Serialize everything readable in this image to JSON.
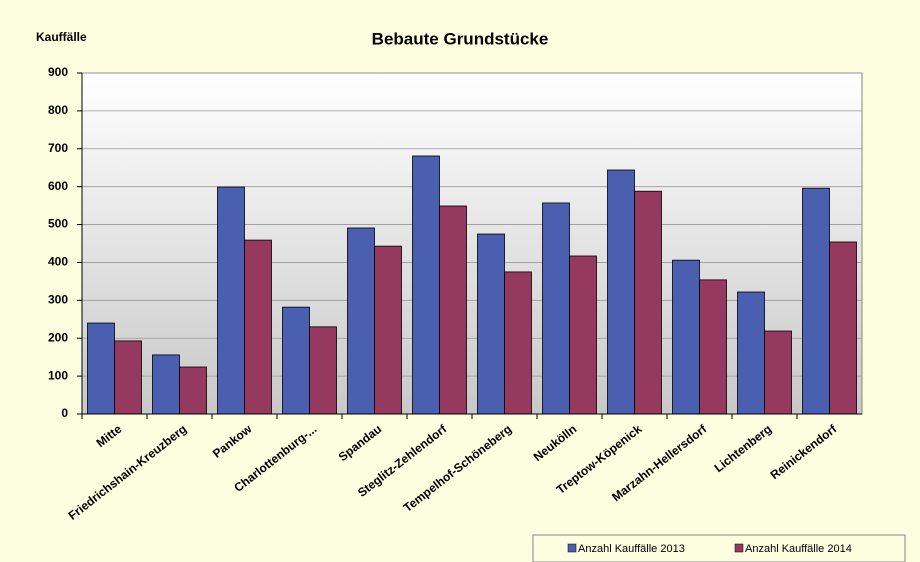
{
  "chart_data": {
    "type": "bar",
    "title": "Bebaute Grundstücke",
    "y_label": "Kauffälle",
    "categories": [
      "Mitte",
      "Friedrichshain-Kreuzberg",
      "Pankow",
      "Charlottenburg-...",
      "Spandau",
      "Steglitz-Zehlendorf",
      "Tempelhof-Schöneberg",
      "Neukölln",
      "Treptow-Köpenick",
      "Marzahn-Hellersdorf",
      "Lichtenberg",
      "Reinickendorf"
    ],
    "series": [
      {
        "name": "Anzahl Kauffälle 2013",
        "color": "#4a5fb0",
        "values": [
          240,
          156,
          599,
          282,
          491,
          681,
          475,
          557,
          644,
          406,
          322,
          596
        ]
      },
      {
        "name": "Anzahl Kauffälle 2014",
        "color": "#953a5e",
        "values": [
          193,
          124,
          459,
          230,
          443,
          549,
          375,
          417,
          588,
          354,
          219,
          454
        ]
      }
    ],
    "ylim": [
      0,
      900
    ],
    "yticks": [
      0,
      100,
      200,
      300,
      400,
      500,
      600,
      700,
      800,
      900
    ],
    "grid": true,
    "legend": "bottom-right"
  }
}
